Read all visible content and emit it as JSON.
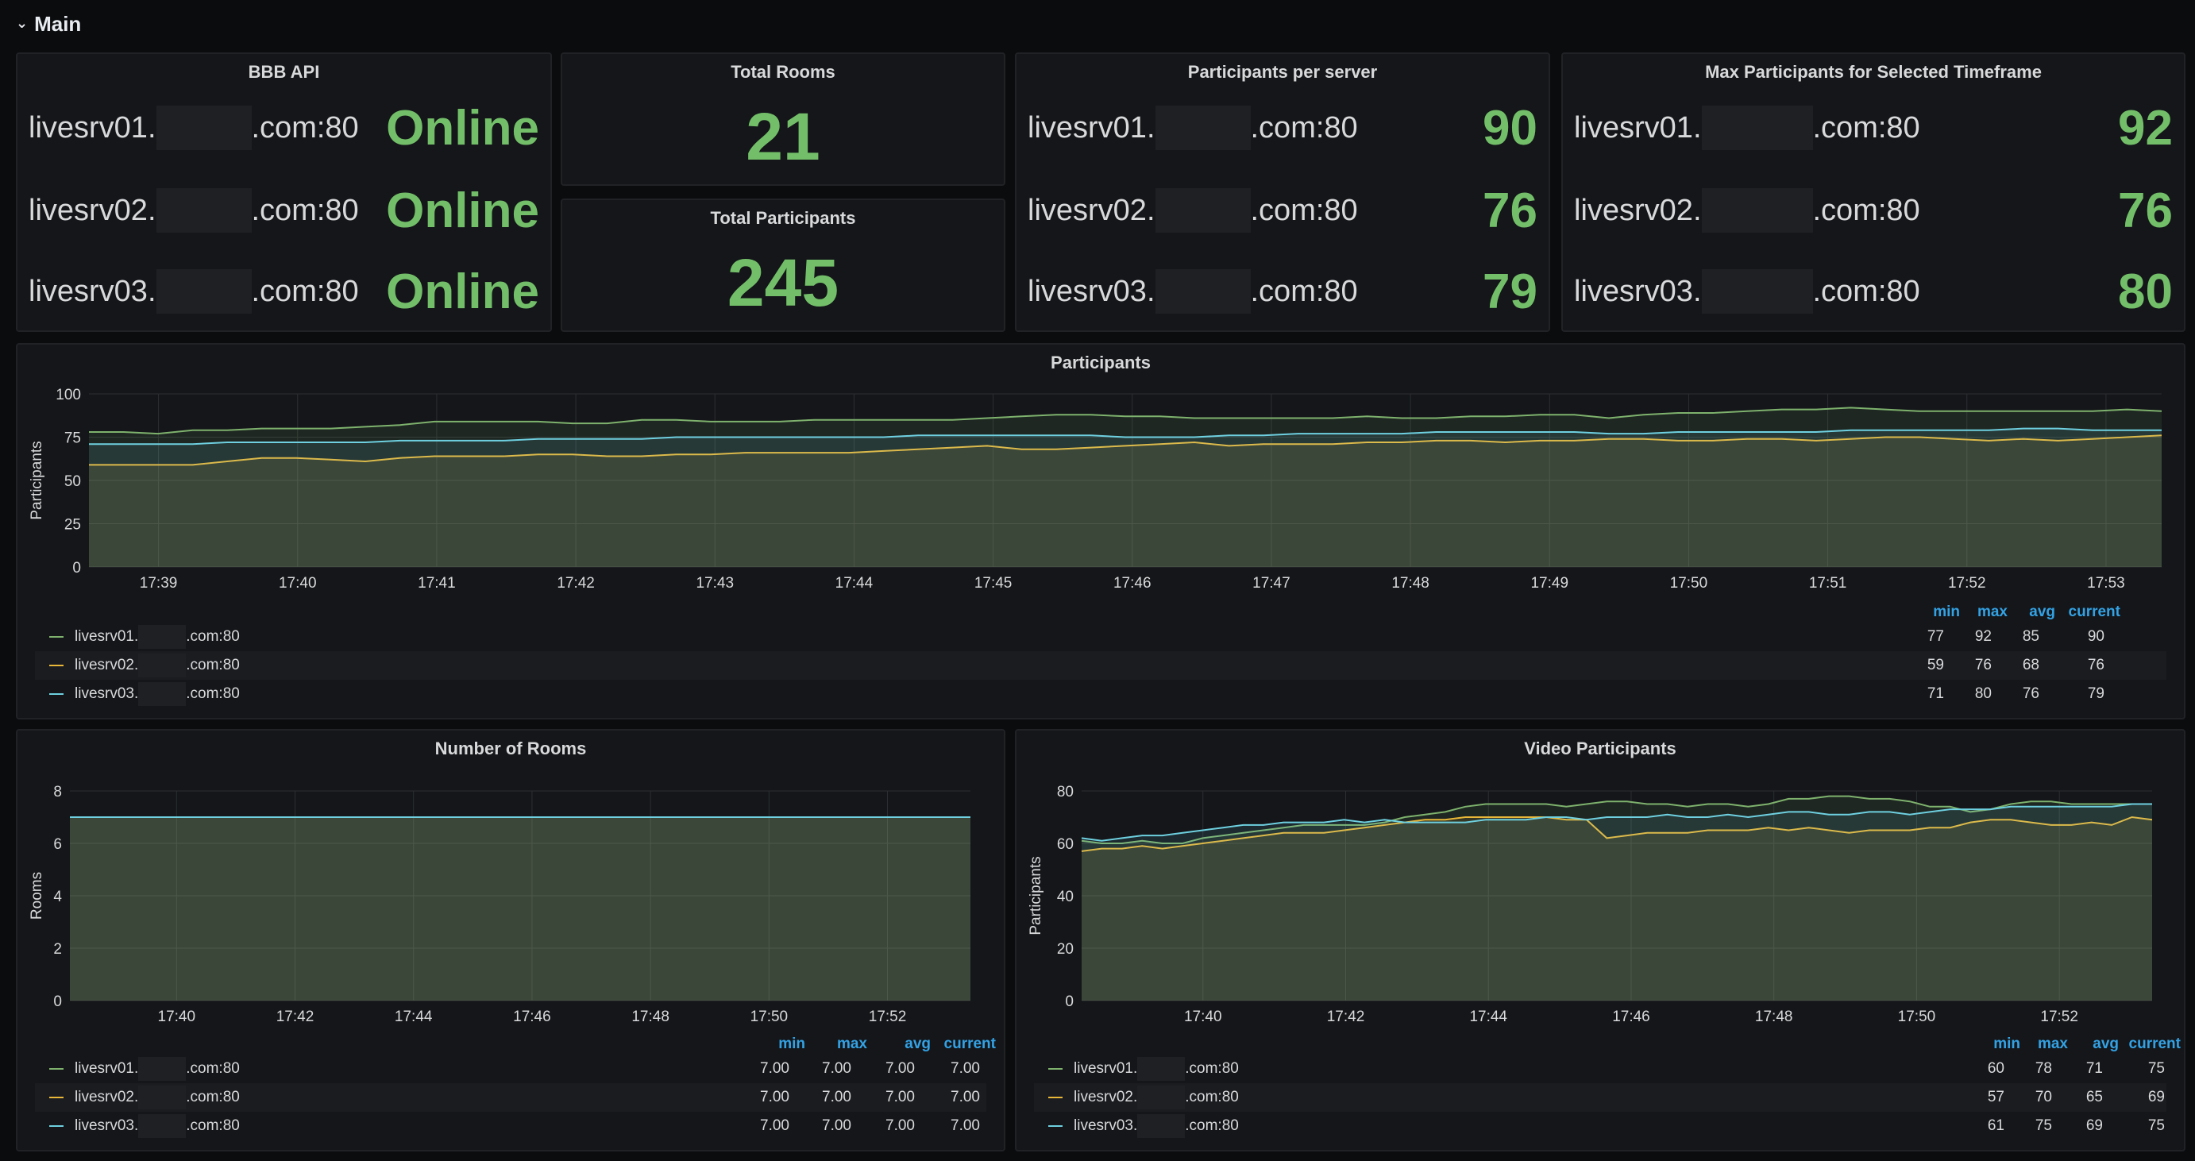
{
  "row": {
    "title": "Main"
  },
  "bbb_api": {
    "title": "BBB API",
    "rows": [
      {
        "host_prefix": "livesrv01.",
        "host_suffix": ".com:80",
        "value": "Online"
      },
      {
        "host_prefix": "livesrv02.",
        "host_suffix": ".com:80",
        "value": "Online"
      },
      {
        "host_prefix": "livesrv03.",
        "host_suffix": ".com:80",
        "value": "Online"
      }
    ]
  },
  "total_rooms": {
    "title": "Total Rooms",
    "value": "21"
  },
  "total_participants": {
    "title": "Total Participants",
    "value": "245"
  },
  "participants_per_server": {
    "title": "Participants per server",
    "rows": [
      {
        "host_prefix": "livesrv01.",
        "host_suffix": ".com:80",
        "value": "90"
      },
      {
        "host_prefix": "livesrv02.",
        "host_suffix": ".com:80",
        "value": "76"
      },
      {
        "host_prefix": "livesrv03.",
        "host_suffix": ".com:80",
        "value": "79"
      }
    ]
  },
  "max_participants": {
    "title": "Max Participants for Selected Timeframe",
    "rows": [
      {
        "host_prefix": "livesrv01.",
        "host_suffix": ".com:80",
        "value": "92"
      },
      {
        "host_prefix": "livesrv02.",
        "host_suffix": ".com:80",
        "value": "76"
      },
      {
        "host_prefix": "livesrv03.",
        "host_suffix": ".com:80",
        "value": "80"
      }
    ]
  },
  "colors": {
    "green": "#73bf69",
    "series1": "#7eb26d",
    "series2": "#eab839",
    "series3": "#6ed0e0",
    "legend_head": "#33a2e5"
  },
  "legend_headers": [
    "min",
    "max",
    "avg",
    "current"
  ],
  "chart_data": [
    {
      "id": "participants",
      "type": "area",
      "title": "Participants",
      "ylabel": "Participants",
      "xlabel": "",
      "ylim": [
        0,
        100
      ],
      "yticks": [
        "0",
        "25",
        "50",
        "75",
        "100"
      ],
      "xticks": [
        "17:39",
        "17:40",
        "17:41",
        "17:42",
        "17:43",
        "17:44",
        "17:45",
        "17:46",
        "17:47",
        "17:48",
        "17:49",
        "17:50",
        "17:51",
        "17:52",
        "17:53"
      ],
      "x_start": "17:38.5",
      "x_end": "17:53.4",
      "series": [
        {
          "name": "livesrv01.",
          "name_suffix": ".com:80",
          "min": "77",
          "max": "92",
          "avg": "85",
          "current": "90",
          "values": [
            78,
            78,
            77,
            79,
            79,
            80,
            80,
            80,
            81,
            82,
            84,
            84,
            84,
            84,
            83,
            83,
            85,
            85,
            84,
            84,
            84,
            85,
            85,
            85,
            85,
            85,
            86,
            87,
            88,
            88,
            87,
            87,
            86,
            86,
            86,
            86,
            86,
            87,
            86,
            86,
            87,
            87,
            88,
            88,
            86,
            88,
            89,
            89,
            90,
            91,
            91,
            92,
            91,
            90,
            90,
            90,
            90,
            90,
            90,
            91,
            90
          ]
        },
        {
          "name": "livesrv02.",
          "name_suffix": ".com:80",
          "min": "59",
          "max": "76",
          "avg": "68",
          "current": "76",
          "values": [
            59,
            59,
            59,
            59,
            61,
            63,
            63,
            62,
            61,
            63,
            64,
            64,
            64,
            65,
            65,
            64,
            64,
            65,
            65,
            66,
            66,
            66,
            66,
            67,
            68,
            69,
            70,
            68,
            68,
            69,
            70,
            71,
            72,
            70,
            71,
            71,
            71,
            72,
            72,
            73,
            73,
            72,
            73,
            73,
            74,
            74,
            73,
            73,
            74,
            74,
            73,
            74,
            75,
            75,
            74,
            73,
            74,
            73,
            74,
            75,
            76
          ]
        },
        {
          "name": "livesrv03.",
          "name_suffix": ".com:80",
          "min": "71",
          "max": "80",
          "avg": "76",
          "current": "79",
          "values": [
            71,
            71,
            71,
            71,
            72,
            72,
            72,
            72,
            72,
            73,
            73,
            73,
            73,
            74,
            74,
            74,
            74,
            75,
            75,
            75,
            75,
            75,
            75,
            75,
            76,
            76,
            76,
            76,
            76,
            76,
            75,
            75,
            75,
            76,
            76,
            77,
            77,
            77,
            77,
            78,
            78,
            78,
            78,
            78,
            77,
            77,
            78,
            78,
            78,
            78,
            78,
            79,
            79,
            79,
            79,
            79,
            80,
            80,
            79,
            79,
            79
          ]
        }
      ]
    },
    {
      "id": "rooms",
      "type": "area",
      "title": "Number of Rooms",
      "ylabel": "Rooms",
      "xlabel": "",
      "ylim": [
        0,
        8
      ],
      "yticks": [
        "0",
        "2",
        "4",
        "6",
        "8"
      ],
      "xticks": [
        "17:40",
        "17:42",
        "17:44",
        "17:46",
        "17:48",
        "17:50",
        "17:52"
      ],
      "x_start": "17:38.2",
      "x_end": "17:53.4",
      "series": [
        {
          "name": "livesrv01.",
          "name_suffix": ".com:80",
          "min": "7.00",
          "max": "7.00",
          "avg": "7.00",
          "current": "7.00",
          "values": [
            7,
            7
          ]
        },
        {
          "name": "livesrv02.",
          "name_suffix": ".com:80",
          "min": "7.00",
          "max": "7.00",
          "avg": "7.00",
          "current": "7.00",
          "values": [
            7,
            7
          ]
        },
        {
          "name": "livesrv03.",
          "name_suffix": ".com:80",
          "min": "7.00",
          "max": "7.00",
          "avg": "7.00",
          "current": "7.00",
          "values": [
            7,
            7
          ]
        }
      ]
    },
    {
      "id": "video",
      "type": "area",
      "title": "Video Participants",
      "ylabel": "Participants",
      "xlabel": "",
      "ylim": [
        0,
        80
      ],
      "yticks": [
        "0",
        "20",
        "40",
        "60",
        "80"
      ],
      "xticks": [
        "17:40",
        "17:42",
        "17:44",
        "17:46",
        "17:48",
        "17:50",
        "17:52"
      ],
      "x_start": "17:38.3",
      "x_end": "17:53.3",
      "series": [
        {
          "name": "livesrv01.",
          "name_suffix": ".com:80",
          "min": "60",
          "max": "78",
          "avg": "71",
          "current": "75",
          "values": [
            61,
            60,
            60,
            61,
            60,
            60,
            62,
            63,
            64,
            65,
            66,
            67,
            67,
            67,
            67,
            68,
            70,
            71,
            72,
            74,
            75,
            75,
            75,
            75,
            74,
            75,
            76,
            76,
            75,
            75,
            74,
            75,
            75,
            74,
            75,
            77,
            77,
            78,
            78,
            77,
            77,
            76,
            74,
            74,
            72,
            73,
            75,
            76,
            76,
            75,
            75,
            75,
            75,
            75
          ]
        },
        {
          "name": "livesrv02.",
          "name_suffix": ".com:80",
          "min": "57",
          "max": "70",
          "avg": "65",
          "current": "69",
          "values": [
            57,
            58,
            58,
            59,
            58,
            59,
            60,
            61,
            62,
            63,
            64,
            64,
            64,
            65,
            66,
            67,
            68,
            69,
            69,
            70,
            70,
            70,
            70,
            70,
            69,
            69,
            62,
            63,
            64,
            64,
            64,
            65,
            65,
            65,
            66,
            65,
            66,
            65,
            64,
            65,
            65,
            65,
            66,
            66,
            68,
            69,
            69,
            68,
            67,
            67,
            68,
            67,
            70,
            69
          ]
        },
        {
          "name": "livesrv03.",
          "name_suffix": ".com:80",
          "min": "61",
          "max": "75",
          "avg": "69",
          "current": "75",
          "values": [
            62,
            61,
            62,
            63,
            63,
            64,
            65,
            66,
            67,
            67,
            68,
            68,
            68,
            69,
            68,
            69,
            68,
            68,
            68,
            68,
            69,
            69,
            69,
            70,
            70,
            69,
            70,
            70,
            70,
            71,
            70,
            70,
            71,
            70,
            71,
            72,
            72,
            71,
            71,
            72,
            72,
            71,
            72,
            73,
            73,
            73,
            74,
            74,
            74,
            74,
            74,
            74,
            75,
            75
          ]
        }
      ]
    }
  ]
}
